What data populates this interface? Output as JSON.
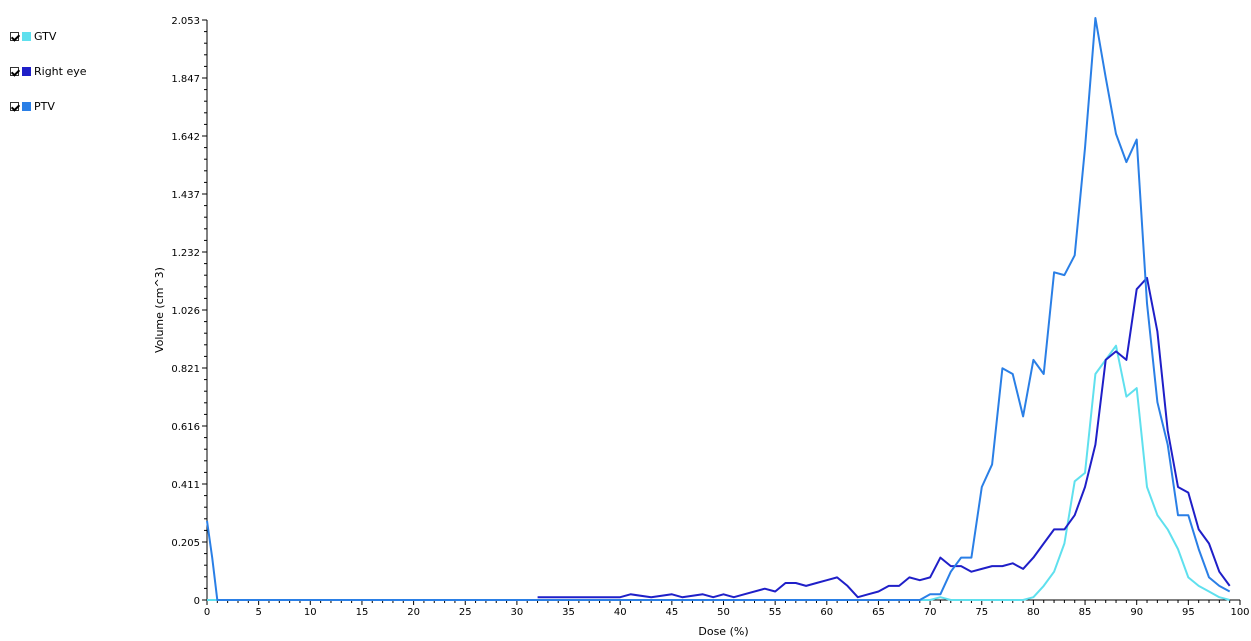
{
  "legend": {
    "items": [
      {
        "label": "GTV",
        "color": "#5fe0ee",
        "checked": true
      },
      {
        "label": "Right eye",
        "color": "#1f1fc8",
        "checked": true
      },
      {
        "label": "PTV",
        "color": "#2a7fe6",
        "checked": true
      }
    ]
  },
  "chart_data": {
    "type": "line",
    "xlabel": "Dose (%)",
    "ylabel": "Volume (cm^3)",
    "xlim": [
      0,
      100
    ],
    "ylim": [
      0,
      2.053
    ],
    "xticks": [
      0,
      5,
      10,
      15,
      20,
      25,
      30,
      35,
      40,
      45,
      50,
      55,
      60,
      65,
      70,
      75,
      80,
      85,
      90,
      95,
      100
    ],
    "yticks": [
      "0",
      "0.205",
      "0.411",
      "0.616",
      "0.821",
      "1.026",
      "1.232",
      "1.437",
      "1.642",
      "1.847",
      "2.053"
    ],
    "grid": false,
    "legend_position": "top-left",
    "series": [
      {
        "name": "GTV",
        "color": "#5fe0ee",
        "x": [
          0,
          70,
          71,
          72,
          73,
          74,
          75,
          76,
          77,
          78,
          79,
          80,
          81,
          82,
          83,
          84,
          85,
          86,
          87,
          88,
          89,
          90,
          91,
          92,
          93,
          94,
          95,
          96,
          97,
          98,
          99
        ],
        "y": [
          0,
          0,
          0.01,
          0,
          0,
          0,
          0,
          0,
          0,
          0,
          0,
          0.01,
          0.05,
          0.1,
          0.2,
          0.42,
          0.45,
          0.8,
          0.85,
          0.9,
          0.72,
          0.75,
          0.4,
          0.3,
          0.25,
          0.18,
          0.08,
          0.05,
          0.03,
          0.01,
          0
        ]
      },
      {
        "name": "Right eye",
        "color": "#1f1fc8",
        "x": [
          32,
          33,
          37,
          40,
          41,
          43,
          45,
          46,
          48,
          49,
          50,
          51,
          52,
          54,
          55,
          56,
          57,
          58,
          59,
          60,
          61,
          62,
          63,
          64,
          65,
          66,
          67,
          68,
          69,
          70,
          71,
          72,
          73,
          74,
          75,
          76,
          77,
          78,
          79,
          80,
          81,
          82,
          83,
          84,
          85,
          86,
          87,
          88,
          89,
          90,
          91,
          92,
          93,
          94,
          95,
          96,
          97,
          98,
          99
        ],
        "y": [
          0.01,
          0.01,
          0.01,
          0.01,
          0.02,
          0.01,
          0.02,
          0.01,
          0.02,
          0.01,
          0.02,
          0.01,
          0.02,
          0.04,
          0.03,
          0.06,
          0.06,
          0.05,
          0.06,
          0.07,
          0.08,
          0.05,
          0.01,
          0.02,
          0.03,
          0.05,
          0.05,
          0.08,
          0.07,
          0.08,
          0.15,
          0.12,
          0.12,
          0.1,
          0.11,
          0.12,
          0.12,
          0.13,
          0.11,
          0.15,
          0.2,
          0.25,
          0.25,
          0.3,
          0.4,
          0.55,
          0.85,
          0.88,
          0.85,
          1.1,
          1.14,
          0.95,
          0.6,
          0.4,
          0.38,
          0.25,
          0.2,
          0.1,
          0.05
        ]
      },
      {
        "name": "PTV",
        "color": "#2a7fe6",
        "x": [
          0,
          0.5,
          1,
          69,
          70,
          71,
          72,
          73,
          74,
          75,
          76,
          77,
          78,
          79,
          80,
          81,
          82,
          83,
          84,
          85,
          86,
          87,
          88,
          89,
          90,
          91,
          92,
          93,
          94,
          95,
          96,
          97,
          98,
          99
        ],
        "y": [
          0.28,
          0.15,
          0,
          0,
          0.02,
          0.02,
          0.1,
          0.15,
          0.15,
          0.4,
          0.48,
          0.82,
          0.8,
          0.65,
          0.85,
          0.8,
          1.16,
          1.15,
          1.22,
          1.6,
          2.06,
          1.85,
          1.65,
          1.55,
          1.63,
          1.05,
          0.7,
          0.55,
          0.3,
          0.3,
          0.18,
          0.08,
          0.05,
          0.03
        ]
      }
    ]
  }
}
